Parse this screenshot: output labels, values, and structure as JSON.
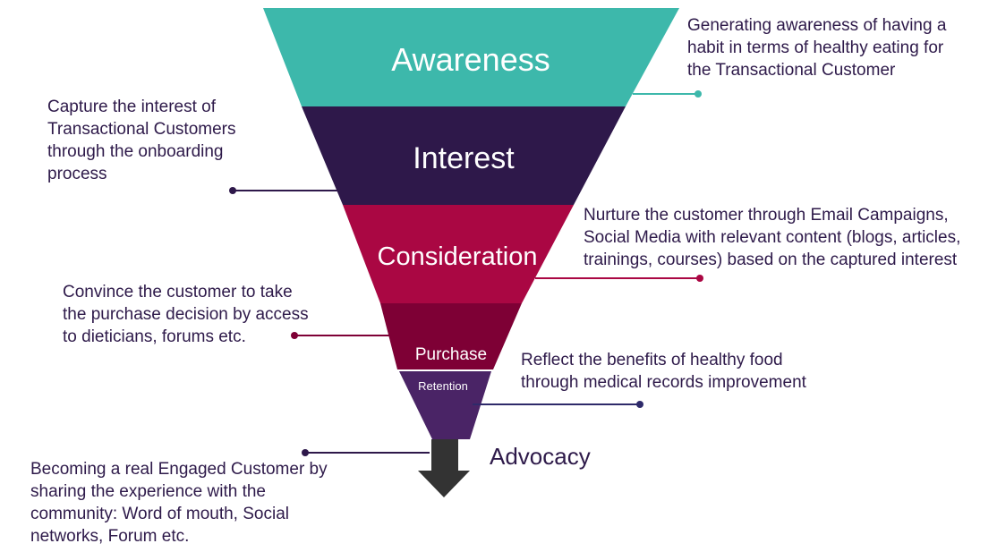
{
  "colors": {
    "awareness": "#3db8ab",
    "interest": "#2e184a",
    "consideration": "#aa0743",
    "purchase": "#7e0035",
    "retention": "#4a2466",
    "arrow": "#333333",
    "note_text": "#2e1a4a"
  },
  "stages": [
    {
      "label": "Awareness"
    },
    {
      "label": "Interest"
    },
    {
      "label": "Consideration"
    },
    {
      "label": "Purchase"
    },
    {
      "label": "Retention"
    }
  ],
  "notes": {
    "awareness": [
      "Generating awareness of having a",
      "habit in terms of healthy eating for",
      "the Transactional Customer"
    ],
    "interest": [
      "Capture the interest of",
      "Transactional Customers",
      "through the onboarding",
      "process"
    ],
    "consideration": [
      "Nurture the customer through Email Campaigns,",
      "Social Media with relevant content (blogs, articles,",
      "trainings, courses) based on the captured interest"
    ],
    "purchase": [
      "Convince the customer to take",
      "the purchase decision by access",
      "to dieticians, forums etc."
    ],
    "retention": [
      "Reflect the benefits of healthy food",
      "through medical records improvement"
    ],
    "advocacy": [
      "Becoming a real Engaged Customer by",
      "sharing the experience with the",
      "community: Word of mouth, Social",
      "networks, Forum etc."
    ]
  },
  "advocacy_label": "Advocacy"
}
